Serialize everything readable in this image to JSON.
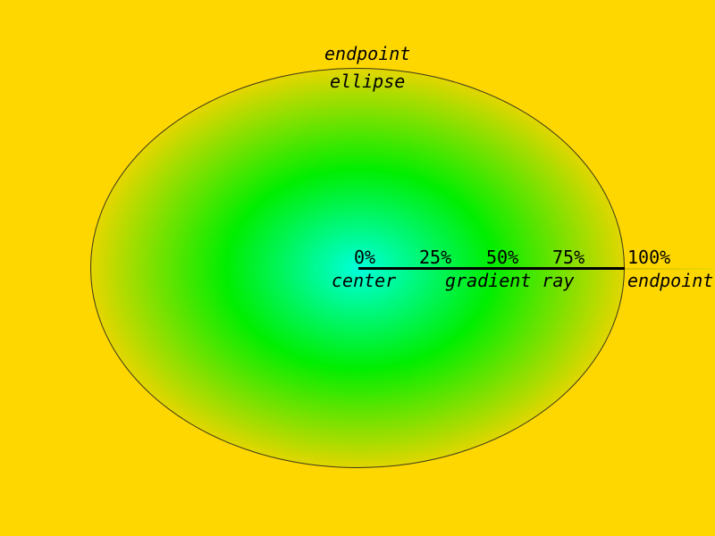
{
  "colors": {
    "background": "#ffd700",
    "gradient_stops": [
      {
        "offset": "0%",
        "color": "#00ffdc"
      },
      {
        "offset": "50%",
        "color": "#00ee00"
      },
      {
        "offset": "100%",
        "color": "#e4d600"
      }
    ],
    "ray": "#000000"
  },
  "ellipse": {
    "label_top": "endpoint",
    "label_bottom": "ellipse"
  },
  "ray": {
    "stops": [
      "0%",
      "25%",
      "50%",
      "75%",
      "100%"
    ],
    "center_label": "center",
    "ray_label": "gradient ray",
    "end_label": "endpoint"
  }
}
